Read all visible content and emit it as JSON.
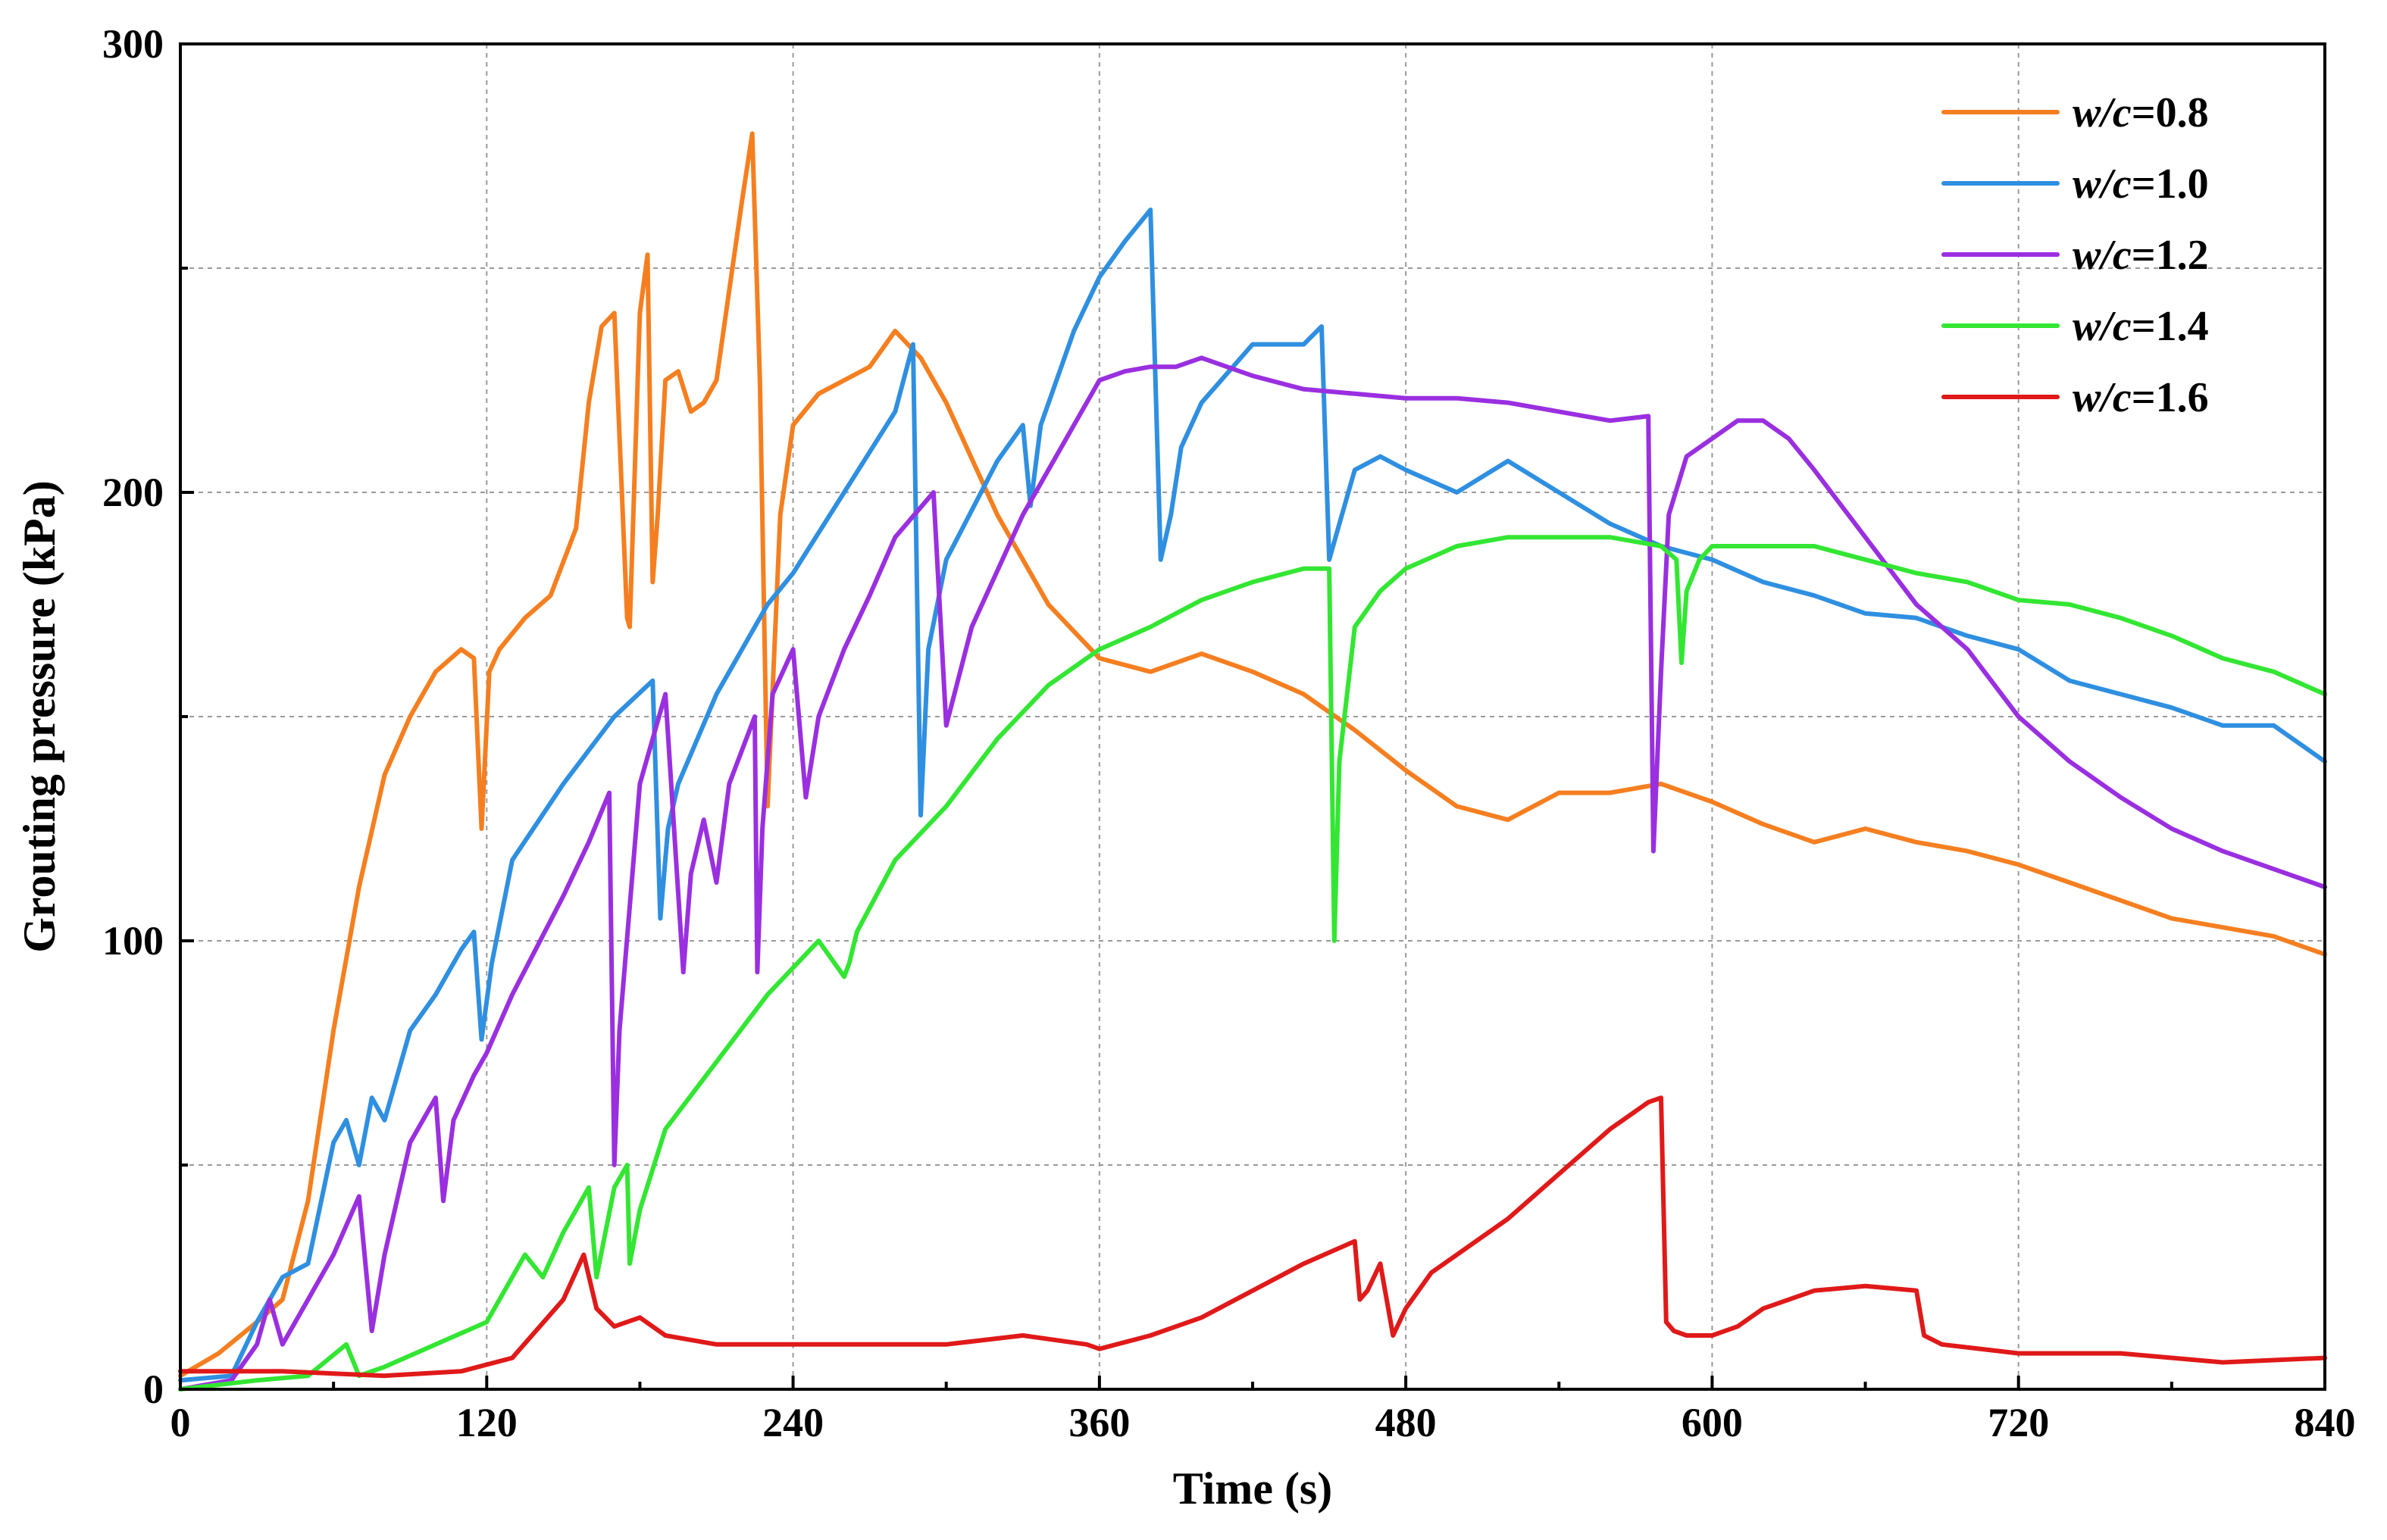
{
  "chart_data": {
    "type": "line",
    "xlabel": "Time (s)",
    "ylabel": "Grouting pressure (kPa)",
    "xlim": [
      0,
      840
    ],
    "ylim": [
      0,
      300
    ],
    "xticks": [
      0,
      120,
      240,
      360,
      480,
      600,
      720,
      840
    ],
    "yticks": [
      0,
      100,
      200,
      300
    ],
    "xtick_labels": [
      "0",
      "120",
      "240",
      "360",
      "480",
      "600",
      "720",
      "840"
    ],
    "ytick_labels": [
      "0",
      "100",
      "200",
      "300"
    ],
    "grid": true,
    "legend_position": "top-right",
    "series": [
      {
        "name_var": "w/c",
        "name_value": "=0.8",
        "color": "#F57F20",
        "x": [
          0,
          15,
          30,
          40,
          50,
          60,
          70,
          80,
          90,
          100,
          110,
          115,
          118,
          121,
          125,
          135,
          145,
          155,
          160,
          165,
          170,
          175,
          176,
          180,
          183,
          185,
          187,
          190,
          195,
          200,
          205,
          210,
          215,
          220,
          224,
          227,
          230,
          235,
          240,
          250,
          260,
          270,
          280,
          290,
          300,
          320,
          340,
          360,
          380,
          400,
          420,
          440,
          460,
          480,
          500,
          520,
          540,
          560,
          580,
          600,
          620,
          640,
          660,
          680,
          700,
          720,
          740,
          760,
          780,
          800,
          820,
          840
        ],
        "y": [
          3,
          8,
          15,
          20,
          42,
          80,
          112,
          137,
          150,
          160,
          165,
          163,
          125,
          160,
          165,
          172,
          177,
          192,
          220,
          237,
          240,
          172,
          170,
          240,
          253,
          180,
          195,
          225,
          227,
          218,
          220,
          225,
          245,
          265,
          280,
          225,
          130,
          195,
          215,
          222,
          225,
          228,
          236,
          230,
          220,
          195,
          175,
          163,
          160,
          164,
          160,
          155,
          147,
          138,
          130,
          127,
          133,
          133,
          135,
          131,
          126,
          122,
          125,
          122,
          120,
          117,
          113,
          109,
          105,
          103,
          101,
          97
        ]
      },
      {
        "name_var": "w/c",
        "name_value": "=1.0",
        "color": "#2F8FE0",
        "x": [
          0,
          20,
          30,
          40,
          50,
          60,
          65,
          70,
          75,
          80,
          90,
          100,
          110,
          115,
          118,
          122,
          130,
          150,
          170,
          185,
          188,
          191,
          195,
          210,
          230,
          240,
          260,
          280,
          287,
          290,
          293,
          300,
          320,
          330,
          333,
          337,
          350,
          360,
          370,
          380,
          384,
          388,
          392,
          400,
          420,
          440,
          447,
          450,
          454,
          460,
          470,
          480,
          500,
          520,
          540,
          560,
          580,
          600,
          620,
          640,
          660,
          680,
          700,
          720,
          740,
          760,
          780,
          800,
          820,
          840
        ],
        "y": [
          2,
          3,
          15,
          25,
          28,
          55,
          60,
          50,
          65,
          60,
          80,
          88,
          98,
          102,
          78,
          95,
          118,
          135,
          150,
          158,
          105,
          125,
          135,
          155,
          175,
          182,
          200,
          218,
          233,
          128,
          165,
          185,
          207,
          215,
          197,
          215,
          236,
          248,
          256,
          263,
          185,
          195,
          210,
          220,
          233,
          233,
          237,
          185,
          193,
          205,
          208,
          205,
          200,
          207,
          200,
          193,
          188,
          185,
          180,
          177,
          173,
          172,
          168,
          165,
          158,
          155,
          152,
          148,
          148,
          140
        ]
      },
      {
        "name_var": "w/c",
        "name_value": "=1.2",
        "color": "#9A2FE0",
        "x": [
          0,
          20,
          30,
          35,
          40,
          50,
          60,
          70,
          75,
          80,
          90,
          100,
          103,
          107,
          115,
          120,
          130,
          150,
          160,
          168,
          170,
          172,
          180,
          190,
          197,
          200,
          205,
          210,
          215,
          225,
          226,
          228,
          232,
          240,
          245,
          250,
          260,
          270,
          280,
          295,
          300,
          310,
          330,
          350,
          360,
          370,
          380,
          390,
          400,
          420,
          440,
          460,
          480,
          500,
          520,
          540,
          560,
          575,
          577,
          580,
          583,
          590,
          600,
          610,
          620,
          630,
          640,
          660,
          680,
          700,
          720,
          740,
          760,
          780,
          800,
          820,
          840
        ],
        "y": [
          0,
          2,
          10,
          20,
          10,
          20,
          30,
          43,
          13,
          30,
          55,
          65,
          42,
          60,
          70,
          75,
          88,
          110,
          122,
          133,
          50,
          80,
          135,
          155,
          93,
          115,
          127,
          113,
          135,
          150,
          93,
          125,
          155,
          165,
          132,
          150,
          165,
          177,
          190,
          200,
          148,
          170,
          195,
          215,
          225,
          227,
          228,
          228,
          230,
          226,
          223,
          222,
          221,
          221,
          220,
          218,
          216,
          217,
          120,
          160,
          195,
          208,
          212,
          216,
          216,
          212,
          205,
          190,
          175,
          165,
          150,
          140,
          132,
          125,
          120,
          116,
          112
        ]
      },
      {
        "name_var": "w/c",
        "name_value": "=1.4",
        "color": "#33E633",
        "x": [
          0,
          30,
          50,
          65,
          70,
          80,
          100,
          120,
          135,
          142,
          150,
          160,
          163,
          170,
          175,
          176,
          180,
          190,
          210,
          230,
          250,
          260,
          262,
          265,
          280,
          300,
          320,
          340,
          360,
          380,
          400,
          420,
          440,
          450,
          452,
          454,
          460,
          470,
          480,
          500,
          520,
          540,
          560,
          580,
          586,
          588,
          590,
          595,
          600,
          620,
          640,
          660,
          680,
          700,
          720,
          740,
          760,
          780,
          800,
          820,
          840
        ],
        "y": [
          0,
          2,
          3,
          10,
          3,
          5,
          10,
          15,
          30,
          25,
          35,
          45,
          25,
          45,
          50,
          28,
          40,
          58,
          73,
          88,
          100,
          92,
          95,
          102,
          118,
          130,
          145,
          157,
          165,
          170,
          176,
          180,
          183,
          183,
          100,
          140,
          170,
          178,
          183,
          188,
          190,
          190,
          190,
          188,
          185,
          162,
          178,
          185,
          188,
          188,
          188,
          185,
          182,
          180,
          176,
          175,
          172,
          168,
          163,
          160,
          155
        ]
      },
      {
        "name_var": "w/c",
        "name_value": "=1.6",
        "color": "#E01919",
        "x": [
          0,
          40,
          80,
          110,
          130,
          150,
          158,
          163,
          170,
          180,
          190,
          210,
          240,
          270,
          300,
          330,
          355,
          360,
          380,
          400,
          420,
          440,
          460,
          462,
          465,
          470,
          475,
          480,
          490,
          500,
          520,
          540,
          560,
          575,
          580,
          582,
          585,
          590,
          600,
          610,
          620,
          640,
          660,
          680,
          683,
          690,
          720,
          760,
          800,
          840
        ],
        "y": [
          4,
          4,
          3,
          4,
          7,
          20,
          30,
          18,
          14,
          16,
          12,
          10,
          10,
          10,
          10,
          12,
          10,
          9,
          12,
          16,
          22,
          28,
          33,
          20,
          22,
          28,
          12,
          18,
          26,
          30,
          38,
          48,
          58,
          64,
          65,
          15,
          13,
          12,
          12,
          14,
          18,
          22,
          23,
          22,
          12,
          10,
          8,
          8,
          6,
          7
        ]
      }
    ]
  }
}
